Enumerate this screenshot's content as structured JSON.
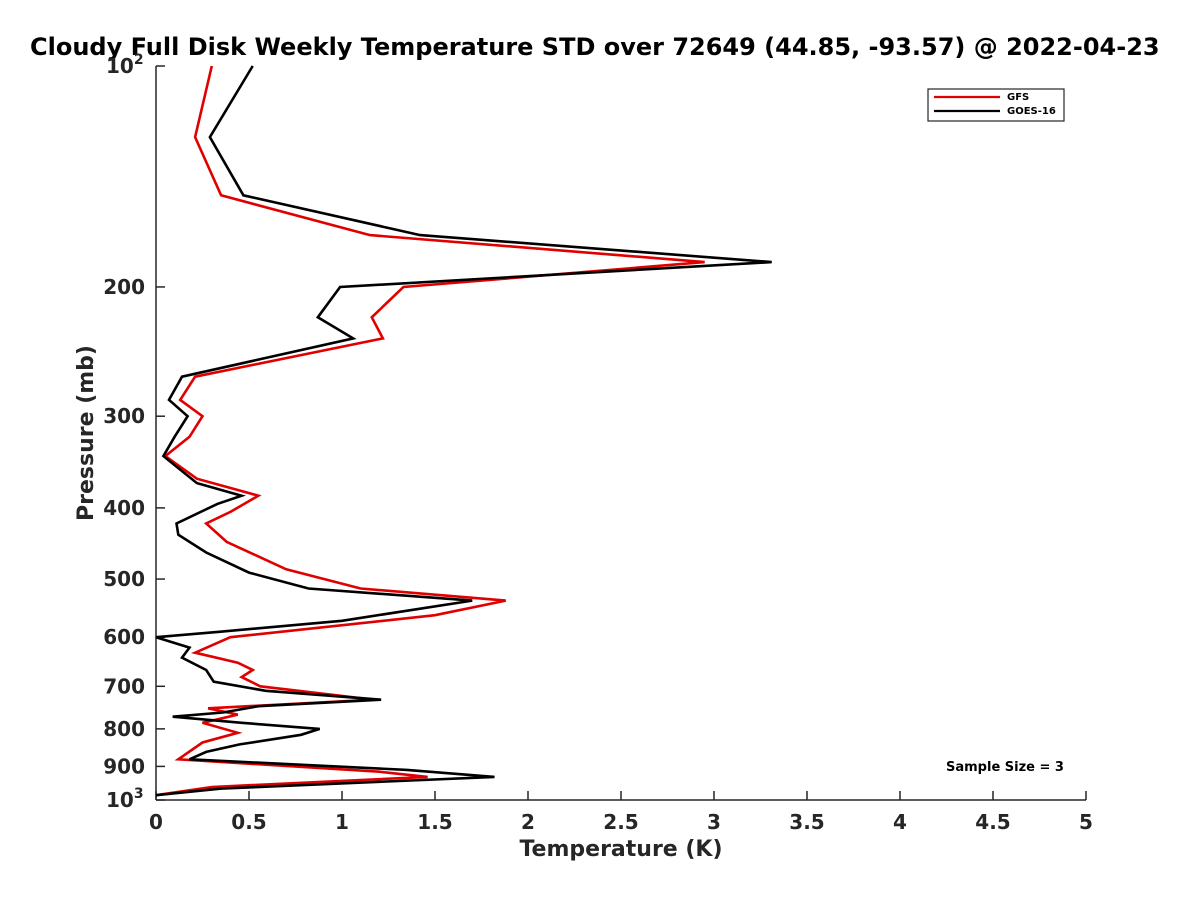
{
  "chart_data": {
    "type": "line",
    "title": "Cloudy Full Disk Weekly Temperature STD over 72649 (44.85, -93.57) @ 2022-04-23",
    "xlabel": "Temperature (K)",
    "ylabel": "Pressure (mb)",
    "xlim": [
      0,
      5
    ],
    "ylim": [
      100,
      1000
    ],
    "y_scale": "log",
    "y_reversed": true,
    "grid": false,
    "legend_position": "top-right",
    "x_ticks": [
      "0",
      "0.5",
      "1",
      "1.5",
      "2",
      "2.5",
      "3",
      "3.5",
      "4",
      "4.5",
      "5"
    ],
    "x_tick_values": [
      0,
      0.5,
      1,
      1.5,
      2,
      2.5,
      3,
      3.5,
      4,
      4.5,
      5
    ],
    "y_ticks": [
      {
        "value": 100,
        "label": "10",
        "sup": "2"
      },
      {
        "value": 200,
        "label": "200",
        "sup": ""
      },
      {
        "value": 300,
        "label": "300",
        "sup": ""
      },
      {
        "value": 400,
        "label": "400",
        "sup": ""
      },
      {
        "value": 500,
        "label": "500",
        "sup": ""
      },
      {
        "value": 600,
        "label": "600",
        "sup": ""
      },
      {
        "value": 700,
        "label": "700",
        "sup": ""
      },
      {
        "value": 800,
        "label": "800",
        "sup": ""
      },
      {
        "value": 900,
        "label": "900",
        "sup": ""
      },
      {
        "value": 1000,
        "label": "10",
        "sup": "3"
      }
    ],
    "annotation": "Sample Size = 3",
    "series": [
      {
        "name": "GFS",
        "color": "#e00000",
        "points": [
          [
            0.3,
            100
          ],
          [
            0.21,
            125
          ],
          [
            0.35,
            150
          ],
          [
            1.15,
            170
          ],
          [
            2.95,
            185
          ],
          [
            1.33,
            200
          ],
          [
            1.16,
            220
          ],
          [
            1.22,
            235
          ],
          [
            0.21,
            265
          ],
          [
            0.13,
            285
          ],
          [
            0.25,
            300
          ],
          [
            0.18,
            320
          ],
          [
            0.05,
            340
          ],
          [
            0.22,
            365
          ],
          [
            0.55,
            385
          ],
          [
            0.4,
            405
          ],
          [
            0.27,
            420
          ],
          [
            0.38,
            445
          ],
          [
            0.7,
            485
          ],
          [
            1.1,
            515
          ],
          [
            1.88,
            535
          ],
          [
            1.5,
            560
          ],
          [
            0.4,
            600
          ],
          [
            0.21,
            630
          ],
          [
            0.44,
            650
          ],
          [
            0.52,
            665
          ],
          [
            0.46,
            680
          ],
          [
            0.56,
            700
          ],
          [
            1.17,
            730
          ],
          [
            0.28,
            750
          ],
          [
            0.44,
            765
          ],
          [
            0.25,
            785
          ],
          [
            0.44,
            810
          ],
          [
            0.25,
            835
          ],
          [
            0.12,
            880
          ],
          [
            1.2,
            915
          ],
          [
            1.46,
            930
          ],
          [
            0.3,
            960
          ],
          [
            0.0,
            985
          ]
        ]
      },
      {
        "name": "GOES-16",
        "color": "#000000",
        "points": [
          [
            0.52,
            100
          ],
          [
            0.29,
            125
          ],
          [
            0.47,
            150
          ],
          [
            1.42,
            170
          ],
          [
            3.31,
            185
          ],
          [
            0.99,
            200
          ],
          [
            0.87,
            220
          ],
          [
            1.06,
            235
          ],
          [
            0.14,
            265
          ],
          [
            0.07,
            285
          ],
          [
            0.17,
            300
          ],
          [
            0.1,
            320
          ],
          [
            0.04,
            340
          ],
          [
            0.22,
            370
          ],
          [
            0.46,
            385
          ],
          [
            0.33,
            395
          ],
          [
            0.11,
            420
          ],
          [
            0.12,
            435
          ],
          [
            0.27,
            460
          ],
          [
            0.5,
            490
          ],
          [
            0.82,
            515
          ],
          [
            1.7,
            535
          ],
          [
            1.0,
            570
          ],
          [
            0.34,
            590
          ],
          [
            0.0,
            600
          ],
          [
            0.18,
            620
          ],
          [
            0.14,
            640
          ],
          [
            0.27,
            665
          ],
          [
            0.31,
            690
          ],
          [
            0.59,
            710
          ],
          [
            1.21,
            730
          ],
          [
            0.55,
            745
          ],
          [
            0.36,
            760
          ],
          [
            0.09,
            770
          ],
          [
            0.46,
            785
          ],
          [
            0.88,
            800
          ],
          [
            0.78,
            815
          ],
          [
            0.45,
            840
          ],
          [
            0.27,
            860
          ],
          [
            0.18,
            880
          ],
          [
            1.35,
            910
          ],
          [
            1.82,
            930
          ],
          [
            0.35,
            965
          ],
          [
            0.0,
            985
          ]
        ]
      }
    ]
  }
}
